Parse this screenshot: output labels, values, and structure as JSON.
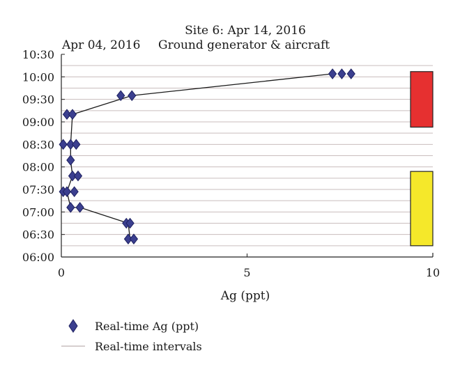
{
  "chart_data": {
    "type": "scatter",
    "title": "Site 6: Apr 14, 2016",
    "annotations": [
      "Apr 04, 2016",
      "Ground generator & aircraft"
    ],
    "xlabel": "Ag (ppt)",
    "ylabel": "",
    "xlim": [
      0,
      10
    ],
    "x_ticks": [
      "0",
      "5",
      "10"
    ],
    "y_time_range": [
      "06:00",
      "10:30"
    ],
    "y_ticks": [
      "06:00",
      "06:30",
      "07:00",
      "07:30",
      "08:00",
      "08:30",
      "09:00",
      "09:30",
      "10:00",
      "10:30"
    ],
    "grid": "horizontal",
    "legend_position": "bottom-left",
    "series": [
      {
        "name": "Real-time Ag (ppt)",
        "color": "#3b3f8f",
        "marker": "diamond",
        "points": [
          {
            "y": "06:24",
            "x": 1.8
          },
          {
            "y": "06:24",
            "x": 1.95
          },
          {
            "y": "06:45",
            "x": 1.75
          },
          {
            "y": "06:45",
            "x": 1.85
          },
          {
            "y": "07:06",
            "x": 0.25
          },
          {
            "y": "07:06",
            "x": 0.5
          },
          {
            "y": "07:27",
            "x": 0.05
          },
          {
            "y": "07:27",
            "x": 0.15
          },
          {
            "y": "07:27",
            "x": 0.35
          },
          {
            "y": "07:48",
            "x": 0.3
          },
          {
            "y": "07:48",
            "x": 0.45
          },
          {
            "y": "08:09",
            "x": 0.25
          },
          {
            "y": "08:30",
            "x": 0.05
          },
          {
            "y": "08:30",
            "x": 0.25
          },
          {
            "y": "08:30",
            "x": 0.4
          },
          {
            "y": "09:10",
            "x": 0.15
          },
          {
            "y": "09:10",
            "x": 0.3
          },
          {
            "y": "09:35",
            "x": 1.6
          },
          {
            "y": "09:35",
            "x": 1.9
          },
          {
            "y": "10:04",
            "x": 7.3
          },
          {
            "y": "10:04",
            "x": 7.55
          },
          {
            "y": "10:04",
            "x": 7.8
          }
        ],
        "line_path": [
          {
            "y": "06:24",
            "x": 1.85
          },
          {
            "y": "06:45",
            "x": 1.8
          },
          {
            "y": "07:06",
            "x": 0.5
          },
          {
            "y": "07:06",
            "x": 0.25
          },
          {
            "y": "07:27",
            "x": 0.15
          },
          {
            "y": "07:48",
            "x": 0.3
          },
          {
            "y": "08:09",
            "x": 0.25
          },
          {
            "y": "08:30",
            "x": 0.25
          },
          {
            "y": "09:10",
            "x": 0.3
          },
          {
            "y": "09:35",
            "x": 1.9
          },
          {
            "y": "10:04",
            "x": 7.3
          }
        ]
      },
      {
        "name": "Real-time intervals",
        "color": "#c9bdbd",
        "marker": "line"
      }
    ],
    "intervals": [
      {
        "name": "red-interval",
        "color": "#e63030",
        "y_start": "08:53",
        "y_end": "10:07"
      },
      {
        "name": "yellow-interval",
        "color": "#f5e82a",
        "y_start": "06:15",
        "y_end": "07:54"
      }
    ]
  }
}
